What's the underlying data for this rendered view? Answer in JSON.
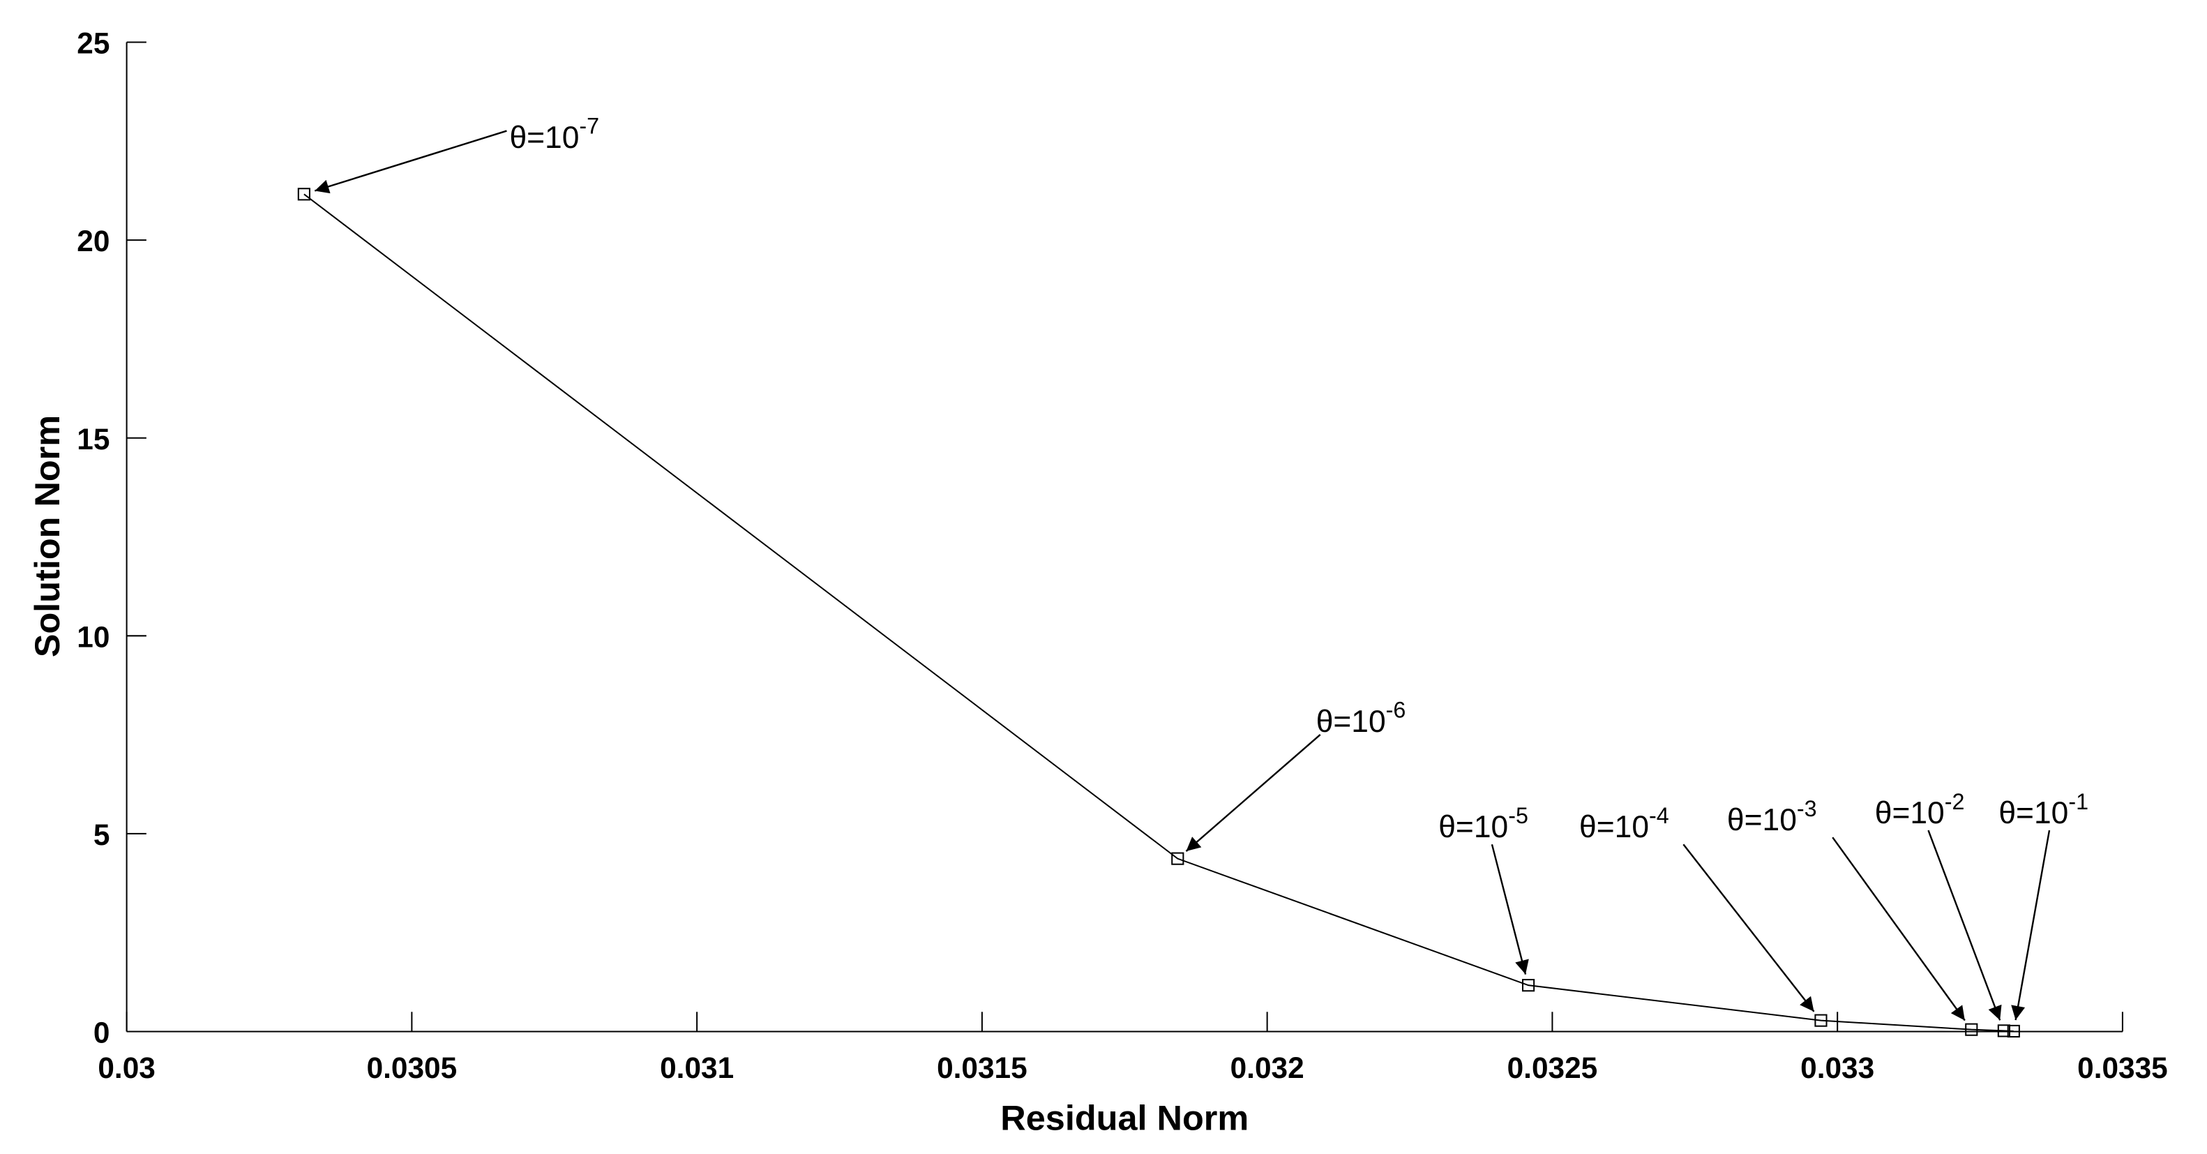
{
  "chart_data": {
    "type": "line",
    "xlabel": "Residual Norm",
    "ylabel": "Solution Norm",
    "x": [
      0.030311,
      0.031843,
      0.032458,
      0.032971,
      0.033235,
      0.033292,
      0.033309
    ],
    "values": [
      21.16,
      4.37,
      1.17,
      0.28,
      0.05,
      0.02,
      0.01
    ],
    "color": "#000000",
    "marker": "square",
    "xlim": [
      0.03,
      0.0335
    ],
    "xticks": [
      0.03,
      0.0305,
      0.031,
      0.0315,
      0.032,
      0.0325,
      0.033,
      0.0335
    ],
    "ylim": [
      0,
      25
    ],
    "yticks": [
      0,
      5,
      10,
      15,
      20,
      25
    ],
    "annotations": [
      {
        "text": "θ=10",
        "exponent": "-7",
        "point": 0
      },
      {
        "text": "θ=10",
        "exponent": "-6",
        "point": 1
      },
      {
        "text": "θ=10",
        "exponent": "-5",
        "point": 2
      },
      {
        "text": "θ=10",
        "exponent": "-4",
        "point": 3
      },
      {
        "text": "θ=10",
        "exponent": "-3",
        "point": 4
      },
      {
        "text": "θ=10",
        "exponent": "-2",
        "point": 5
      },
      {
        "text": "θ=10",
        "exponent": "-1",
        "point": 6
      }
    ]
  }
}
